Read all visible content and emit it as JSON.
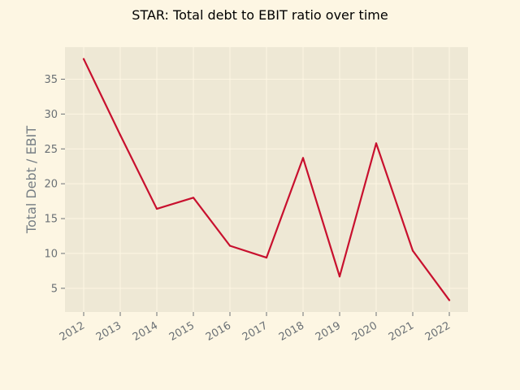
{
  "chart_data": {
    "type": "line",
    "title": "STAR: Total debt to EBIT ratio over time",
    "xlabel": "",
    "ylabel": "Total Debt / EBIT",
    "x": [
      "2012",
      "2013",
      "2014",
      "2015",
      "2016",
      "2017",
      "2018",
      "2019",
      "2020",
      "2021",
      "2022"
    ],
    "series": [
      {
        "values": [
          37.9,
          27.0,
          16.4,
          18.0,
          11.1,
          9.4,
          23.7,
          6.7,
          25.8,
          10.4,
          3.3
        ]
      }
    ],
    "yticks": [
      5,
      10,
      15,
      20,
      25,
      30,
      35
    ],
    "ylim": [
      1.6,
      39.6
    ],
    "grid": true,
    "colors": {
      "figure_background": "#fdf6e3",
      "plot_background": "#eee8d5",
      "grid": "#fdf6e3",
      "line": "#c8102e",
      "tick_text": "#6a7075",
      "ylabel_text": "#777f85"
    }
  }
}
